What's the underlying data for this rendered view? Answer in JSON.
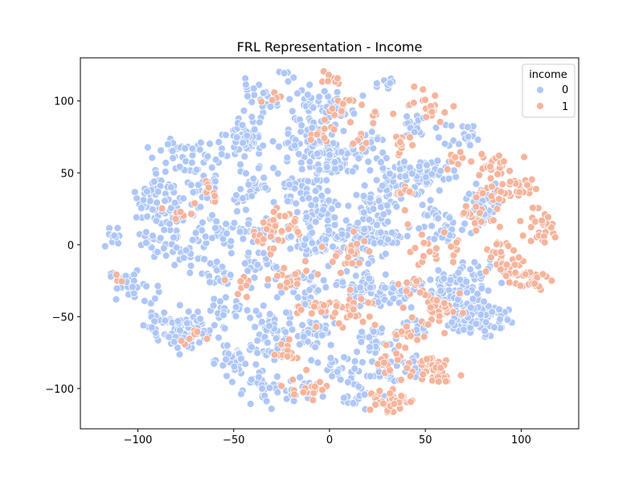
{
  "chart_data": {
    "type": "scatter",
    "title": "FRL Representation - Income",
    "xlabel": "",
    "ylabel": "",
    "xlim": [
      -130,
      130
    ],
    "ylim": [
      -128,
      130
    ],
    "x_ticks": [
      -100,
      -50,
      0,
      50,
      100
    ],
    "y_ticks": [
      -100,
      -50,
      0,
      50,
      100
    ],
    "x_tick_labels": [
      "−100",
      "−50",
      "0",
      "50",
      "100"
    ],
    "y_tick_labels": [
      "−100",
      "−50",
      "0",
      "50",
      "100"
    ],
    "grid": false,
    "legend": {
      "title": "income",
      "placement": "top-right",
      "entries": [
        {
          "label": "0",
          "color": "#aec7f8"
        },
        {
          "label": "1",
          "color": "#f6b49c"
        }
      ]
    },
    "series": [
      {
        "name": "0",
        "color": "#aec7f8",
        "clusters": [
          [
            -112,
            5,
            4,
            10
          ],
          [
            -95,
            27,
            6,
            25
          ],
          [
            -90,
            0,
            5,
            20
          ],
          [
            -103,
            -28,
            6,
            30
          ],
          [
            -82,
            63,
            5,
            22
          ],
          [
            -85,
            40,
            6,
            25
          ],
          [
            -78,
            20,
            7,
            30
          ],
          [
            -75,
            -2,
            6,
            25
          ],
          [
            -83,
            -55,
            7,
            50
          ],
          [
            -72,
            -62,
            6,
            35
          ],
          [
            -68,
            60,
            6,
            25
          ],
          [
            -65,
            38,
            5,
            20
          ],
          [
            -60,
            10,
            6,
            25
          ],
          [
            -58,
            -20,
            6,
            30
          ],
          [
            -55,
            -45,
            5,
            25
          ],
          [
            -52,
            -80,
            6,
            35
          ],
          [
            -45,
            70,
            6,
            30
          ],
          [
            -40,
            40,
            7,
            40
          ],
          [
            -38,
            10,
            6,
            35
          ],
          [
            -35,
            -15,
            5,
            25
          ],
          [
            -30,
            -55,
            6,
            30
          ],
          [
            -30,
            -75,
            5,
            25
          ],
          [
            -35,
            -100,
            6,
            35
          ],
          [
            -38,
            100,
            6,
            25
          ],
          [
            -20,
            70,
            5,
            20
          ],
          [
            -15,
            40,
            6,
            30
          ],
          [
            -10,
            100,
            5,
            25
          ],
          [
            -8,
            80,
            5,
            20
          ],
          [
            -5,
            25,
            7,
            55
          ],
          [
            -10,
            0,
            6,
            30
          ],
          [
            -12,
            -30,
            6,
            30
          ],
          [
            -10,
            -60,
            6,
            40
          ],
          [
            -12,
            -100,
            5,
            20
          ],
          [
            5,
            60,
            7,
            45
          ],
          [
            5,
            95,
            5,
            25
          ],
          [
            10,
            0,
            8,
            60
          ],
          [
            15,
            -30,
            6,
            30
          ],
          [
            5,
            -85,
            5,
            25
          ],
          [
            15,
            -105,
            5,
            20
          ],
          [
            20,
            70,
            5,
            20
          ],
          [
            25,
            30,
            6,
            40
          ],
          [
            20,
            10,
            6,
            30
          ],
          [
            22,
            -30,
            6,
            35
          ],
          [
            22,
            -65,
            5,
            25
          ],
          [
            28,
            -90,
            5,
            25
          ],
          [
            28,
            110,
            4,
            10
          ],
          [
            35,
            50,
            6,
            30
          ],
          [
            30,
            5,
            5,
            25
          ],
          [
            38,
            -35,
            5,
            25
          ],
          [
            40,
            -60,
            5,
            20
          ],
          [
            45,
            85,
            5,
            20
          ],
          [
            48,
            45,
            5,
            25
          ],
          [
            55,
            20,
            5,
            20
          ],
          [
            55,
            50,
            5,
            25
          ],
          [
            60,
            -30,
            6,
            35
          ],
          [
            62,
            10,
            5,
            20
          ],
          [
            80,
            -50,
            7,
            70
          ],
          [
            75,
            -25,
            6,
            30
          ],
          [
            82,
            30,
            5,
            25
          ],
          [
            70,
            75,
            5,
            20
          ],
          [
            78,
            20,
            5,
            20
          ],
          [
            72,
            -45,
            8,
            50
          ],
          [
            45,
            -85,
            5,
            20
          ],
          [
            -22,
            118,
            3,
            5
          ],
          [
            -48,
            75,
            6,
            30
          ],
          [
            -2,
            62,
            6,
            40
          ]
        ]
      },
      {
        "name": "1",
        "color": "#f6b49c",
        "clusters": [
          [
            55,
            -85,
            5,
            45
          ],
          [
            30,
            -108,
            5,
            40
          ],
          [
            85,
            55,
            5,
            25
          ],
          [
            103,
            -25,
            5,
            30
          ],
          [
            110,
            12,
            6,
            30
          ],
          [
            100,
            40,
            4,
            20
          ],
          [
            85,
            35,
            4,
            18
          ],
          [
            62,
            -45,
            6,
            35
          ],
          [
            52,
            95,
            5,
            20
          ],
          [
            55,
            -5,
            6,
            25
          ],
          [
            42,
            -60,
            4,
            15
          ],
          [
            30,
            -80,
            5,
            20
          ],
          [
            12,
            -45,
            6,
            25
          ],
          [
            10,
            -5,
            6,
            20
          ],
          [
            -5,
            -45,
            5,
            20
          ],
          [
            -20,
            -25,
            5,
            20
          ],
          [
            -25,
            15,
            6,
            25
          ],
          [
            -35,
            5,
            5,
            15
          ],
          [
            -22,
            -75,
            4,
            15
          ],
          [
            -10,
            -100,
            5,
            18
          ],
          [
            5,
            95,
            5,
            15
          ],
          [
            -5,
            75,
            4,
            10
          ],
          [
            90,
            -5,
            5,
            20
          ],
          [
            95,
            -15,
            5,
            15
          ],
          [
            80,
            15,
            4,
            10
          ],
          [
            70,
            25,
            4,
            10
          ],
          [
            45,
            -30,
            5,
            15
          ],
          [
            40,
            35,
            4,
            12
          ],
          [
            38,
            70,
            4,
            12
          ],
          [
            -72,
            -65,
            4,
            8
          ],
          [
            -62,
            30,
            3,
            6
          ],
          [
            -80,
            22,
            3,
            6
          ],
          [
            -110,
            -22,
            2,
            4
          ],
          [
            -62,
            40,
            3,
            5
          ],
          [
            -30,
            100,
            3,
            5
          ],
          [
            15,
            75,
            4,
            8
          ],
          [
            25,
            90,
            3,
            5
          ],
          [
            65,
            60,
            4,
            8
          ],
          [
            -45,
            -30,
            4,
            8
          ],
          [
            0,
            115,
            3,
            8
          ]
        ]
      }
    ]
  }
}
